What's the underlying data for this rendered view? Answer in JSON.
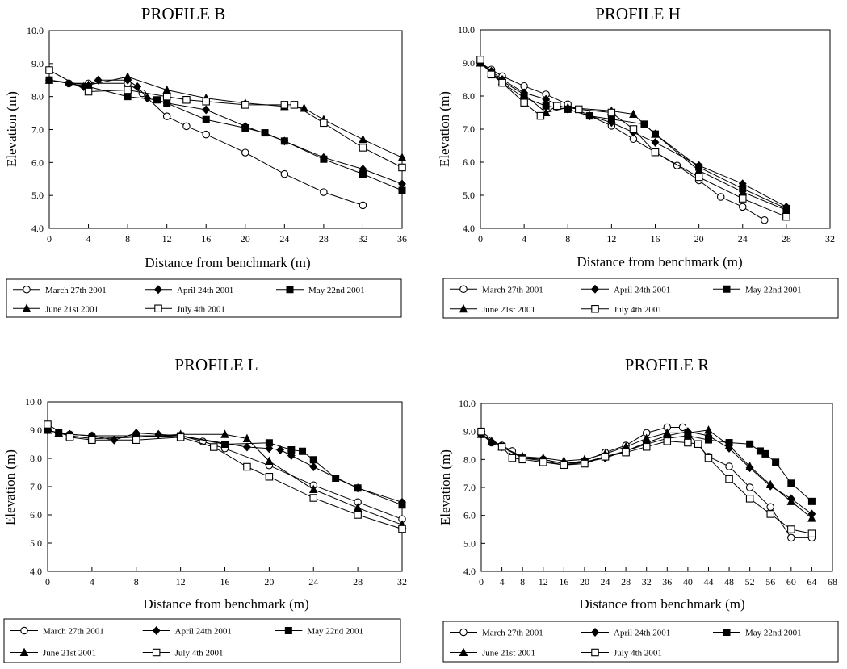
{
  "figure": {
    "xlabel": "Distance from benchmark (m)",
    "ylabel": "Elevation (m)"
  },
  "legend": [
    {
      "name": "March 27th 2001",
      "marker": "circle-open"
    },
    {
      "name": "April 24th 2001",
      "marker": "diamond-filled"
    },
    {
      "name": "May 22nd 2001",
      "marker": "square-filled"
    },
    {
      "name": "June 21st 2001",
      "marker": "triangle-filled"
    },
    {
      "name": "July 4th 2001",
      "marker": "square-open"
    }
  ],
  "chart_data": [
    {
      "type": "line",
      "title": "PROFILE B",
      "xlabel": "Distance from benchmark (m)",
      "ylabel": "Elevation (m)",
      "xlim": [
        0,
        36
      ],
      "xticks": [
        0,
        4,
        8,
        12,
        16,
        20,
        24,
        28,
        32,
        36
      ],
      "ylim": [
        4.0,
        10.0
      ],
      "yticks": [
        "4.0",
        "5.0",
        "6.0",
        "7.0",
        "8.0",
        "9.0",
        "10.0"
      ],
      "grid": false,
      "legend_position": "bottom",
      "series": [
        {
          "name": "March 27th 2001",
          "x": [
            0,
            2,
            4,
            8,
            9.5,
            12,
            14,
            16,
            20,
            24,
            28,
            32
          ],
          "y": [
            8.5,
            8.4,
            8.4,
            8.4,
            8.1,
            7.4,
            7.1,
            6.85,
            6.3,
            5.65,
            5.1,
            4.7
          ]
        },
        {
          "name": "April 24th 2001",
          "x": [
            0,
            2,
            3.5,
            5,
            8,
            9,
            10,
            12,
            16,
            20,
            24,
            28,
            32,
            36
          ],
          "y": [
            8.5,
            8.4,
            8.3,
            8.5,
            8.5,
            8.3,
            7.95,
            7.8,
            7.6,
            7.1,
            6.65,
            6.15,
            5.8,
            5.35
          ]
        },
        {
          "name": "May 22nd 2001",
          "x": [
            0,
            4,
            8,
            11,
            12,
            16,
            20,
            22,
            24,
            28,
            32,
            36
          ],
          "y": [
            8.5,
            8.3,
            8.0,
            7.9,
            7.8,
            7.3,
            7.05,
            6.9,
            6.65,
            6.1,
            5.65,
            5.15
          ]
        },
        {
          "name": "June 21st 2001",
          "x": [
            0,
            4,
            8,
            12,
            16,
            20,
            24,
            26,
            28,
            32,
            36
          ],
          "y": [
            8.5,
            8.35,
            8.6,
            8.2,
            7.95,
            7.8,
            7.7,
            7.65,
            7.3,
            6.7,
            6.15
          ]
        },
        {
          "name": "July 4th 2001",
          "x": [
            0,
            4,
            8,
            12,
            14,
            16,
            20,
            24,
            25,
            28,
            32,
            36
          ],
          "y": [
            8.8,
            8.15,
            8.2,
            8.0,
            7.9,
            7.85,
            7.75,
            7.75,
            7.75,
            7.2,
            6.45,
            5.85
          ]
        }
      ]
    },
    {
      "type": "line",
      "title": "PROFILE H",
      "xlabel": "Distance from benchmark (m)",
      "ylabel": "Elevation (m)",
      "xlim": [
        0,
        32
      ],
      "xticks": [
        0,
        4,
        8,
        12,
        16,
        20,
        24,
        28,
        32
      ],
      "ylim": [
        4.0,
        10.0
      ],
      "yticks": [
        "4.0",
        "5.0",
        "6.0",
        "7.0",
        "8.0",
        "9.0",
        "10.0"
      ],
      "grid": false,
      "legend_position": "bottom",
      "series": [
        {
          "name": "March 27th 2001",
          "x": [
            0,
            1,
            2,
            4,
            6,
            8,
            10,
            12,
            14,
            16,
            18,
            20,
            22,
            24,
            26
          ],
          "y": [
            9.0,
            8.8,
            8.6,
            8.3,
            8.05,
            7.75,
            7.4,
            7.1,
            6.7,
            6.3,
            5.9,
            5.45,
            4.95,
            4.65,
            4.25
          ]
        },
        {
          "name": "April 24th 2001",
          "x": [
            0,
            1,
            2,
            4,
            6,
            8,
            10,
            12,
            14,
            16,
            20,
            24,
            28
          ],
          "y": [
            9.0,
            8.75,
            8.5,
            8.1,
            7.9,
            7.6,
            7.4,
            7.2,
            6.9,
            6.6,
            5.9,
            5.35,
            4.65
          ]
        },
        {
          "name": "May 22nd 2001",
          "x": [
            0,
            1,
            2,
            4,
            6,
            8,
            10,
            12,
            15,
            16,
            20,
            24,
            28
          ],
          "y": [
            9.0,
            8.7,
            8.4,
            7.95,
            7.7,
            7.6,
            7.4,
            7.3,
            7.15,
            6.85,
            5.85,
            5.2,
            4.6
          ]
        },
        {
          "name": "June 21st 2001",
          "x": [
            0,
            1,
            2,
            4,
            6,
            8,
            12,
            14,
            16,
            20,
            24,
            28
          ],
          "y": [
            9.0,
            8.7,
            8.45,
            8.05,
            7.5,
            7.65,
            7.55,
            7.45,
            6.85,
            5.75,
            5.1,
            4.55
          ]
        },
        {
          "name": "July 4th 2001",
          "x": [
            0,
            1,
            2,
            4,
            5.5,
            7,
            9,
            12,
            14,
            16,
            20,
            24,
            28
          ],
          "y": [
            9.1,
            8.65,
            8.4,
            7.8,
            7.4,
            7.7,
            7.6,
            7.5,
            7.0,
            6.3,
            5.55,
            4.9,
            4.35
          ]
        }
      ]
    },
    {
      "type": "line",
      "title": "PROFILE L",
      "xlabel": "Distance from benchmark (m)",
      "ylabel": "Elevation (m)",
      "xlim": [
        0,
        32
      ],
      "xticks": [
        0,
        4,
        8,
        12,
        16,
        20,
        24,
        28,
        32
      ],
      "ylim": [
        4.0,
        10.0
      ],
      "yticks": [
        "4.0",
        "5.0",
        "6.0",
        "7.0",
        "8.0",
        "9.0",
        "10.0"
      ],
      "grid": false,
      "legend_position": "bottom",
      "series": [
        {
          "name": "March 27th 2001",
          "x": [
            0,
            1,
            2,
            4,
            8,
            12,
            14,
            16,
            20,
            24,
            28,
            32
          ],
          "y": [
            9.0,
            8.9,
            8.85,
            8.8,
            8.8,
            8.8,
            8.6,
            8.35,
            7.75,
            7.05,
            6.45,
            5.85
          ]
        },
        {
          "name": "April 24th 2001",
          "x": [
            0,
            1,
            2,
            4,
            6,
            8,
            10,
            12,
            18,
            20,
            21,
            22,
            24,
            28,
            32
          ],
          "y": [
            9.0,
            8.9,
            8.85,
            8.8,
            8.65,
            8.9,
            8.85,
            8.8,
            8.4,
            8.35,
            8.3,
            8.1,
            7.7,
            6.95,
            6.45
          ]
        },
        {
          "name": "May 22nd 2001",
          "x": [
            0,
            1,
            2,
            4,
            8,
            12,
            16,
            20,
            22,
            23,
            24,
            26,
            28,
            32
          ],
          "y": [
            9.0,
            8.9,
            8.8,
            8.7,
            8.75,
            8.8,
            8.5,
            8.55,
            8.3,
            8.25,
            7.95,
            7.3,
            6.95,
            6.35
          ]
        },
        {
          "name": "June 21st 2001",
          "x": [
            0,
            1,
            2,
            4,
            8,
            12,
            16,
            18,
            20,
            24,
            28,
            32
          ],
          "y": [
            9.0,
            8.9,
            8.8,
            8.7,
            8.75,
            8.85,
            8.85,
            8.7,
            7.9,
            6.9,
            6.25,
            5.65
          ]
        },
        {
          "name": "July 4th 2001",
          "x": [
            0,
            2,
            4,
            8,
            12,
            15,
            18,
            20,
            24,
            28,
            32
          ],
          "y": [
            9.2,
            8.75,
            8.65,
            8.65,
            8.75,
            8.4,
            7.7,
            7.35,
            6.6,
            6.0,
            5.5
          ]
        }
      ]
    },
    {
      "type": "line",
      "title": "PROFILE R",
      "xlabel": "Distance from benchmark (m)",
      "ylabel": "Elevation (m)",
      "xlim": [
        0,
        68
      ],
      "xticks": [
        0,
        4,
        8,
        12,
        16,
        20,
        24,
        28,
        32,
        36,
        40,
        44,
        48,
        52,
        56,
        60,
        64,
        68
      ],
      "ylim": [
        4.0,
        10.0
      ],
      "yticks": [
        "4.0",
        "5.0",
        "6.0",
        "7.0",
        "8.0",
        "9.0",
        "10.0"
      ],
      "grid": false,
      "legend_position": "bottom",
      "series": [
        {
          "name": "March 27th 2001",
          "x": [
            0,
            2,
            4,
            6,
            8,
            12,
            16,
            20,
            24,
            28,
            32,
            36,
            39,
            44,
            48,
            52,
            56,
            60,
            64
          ],
          "y": [
            8.9,
            8.6,
            8.5,
            8.3,
            8.05,
            8.0,
            7.85,
            7.95,
            8.25,
            8.5,
            8.95,
            9.15,
            9.15,
            8.1,
            7.75,
            7.0,
            6.3,
            5.2,
            5.2
          ]
        },
        {
          "name": "April 24th 2001",
          "x": [
            0,
            4,
            8,
            12,
            16,
            20,
            24,
            28,
            32,
            36,
            40,
            44,
            48,
            52,
            56,
            60,
            64
          ],
          "y": [
            8.9,
            8.45,
            8.05,
            8.0,
            7.85,
            7.9,
            8.05,
            8.3,
            8.6,
            8.85,
            9.0,
            8.85,
            8.4,
            7.7,
            7.05,
            6.6,
            6.05
          ]
        },
        {
          "name": "May 22nd 2001",
          "x": [
            0,
            4,
            8,
            12,
            16,
            20,
            24,
            28,
            32,
            36,
            40,
            44,
            48,
            52,
            54,
            55,
            57,
            60,
            64
          ],
          "y": [
            8.9,
            8.45,
            8.05,
            7.95,
            7.8,
            7.9,
            8.1,
            8.3,
            8.55,
            8.75,
            8.85,
            8.7,
            8.6,
            8.55,
            8.3,
            8.2,
            7.9,
            7.15,
            6.5
          ]
        },
        {
          "name": "June 21st 2001",
          "x": [
            0,
            2,
            4,
            8,
            12,
            16,
            20,
            24,
            28,
            32,
            36,
            40,
            44,
            48,
            52,
            56,
            60,
            64
          ],
          "y": [
            8.9,
            8.65,
            8.45,
            8.1,
            8.05,
            7.95,
            8.0,
            8.2,
            8.45,
            8.75,
            8.95,
            8.95,
            9.05,
            8.5,
            7.75,
            7.1,
            6.5,
            5.9
          ]
        },
        {
          "name": "July 4th 2001",
          "x": [
            0,
            4,
            6,
            8,
            12,
            16,
            20,
            24,
            28,
            32,
            36,
            40,
            42,
            44,
            48,
            52,
            56,
            60,
            64
          ],
          "y": [
            9.0,
            8.45,
            8.05,
            8.0,
            7.9,
            7.8,
            7.85,
            8.1,
            8.25,
            8.45,
            8.65,
            8.6,
            8.55,
            8.05,
            7.3,
            6.6,
            6.05,
            5.5,
            5.35
          ]
        }
      ]
    }
  ]
}
